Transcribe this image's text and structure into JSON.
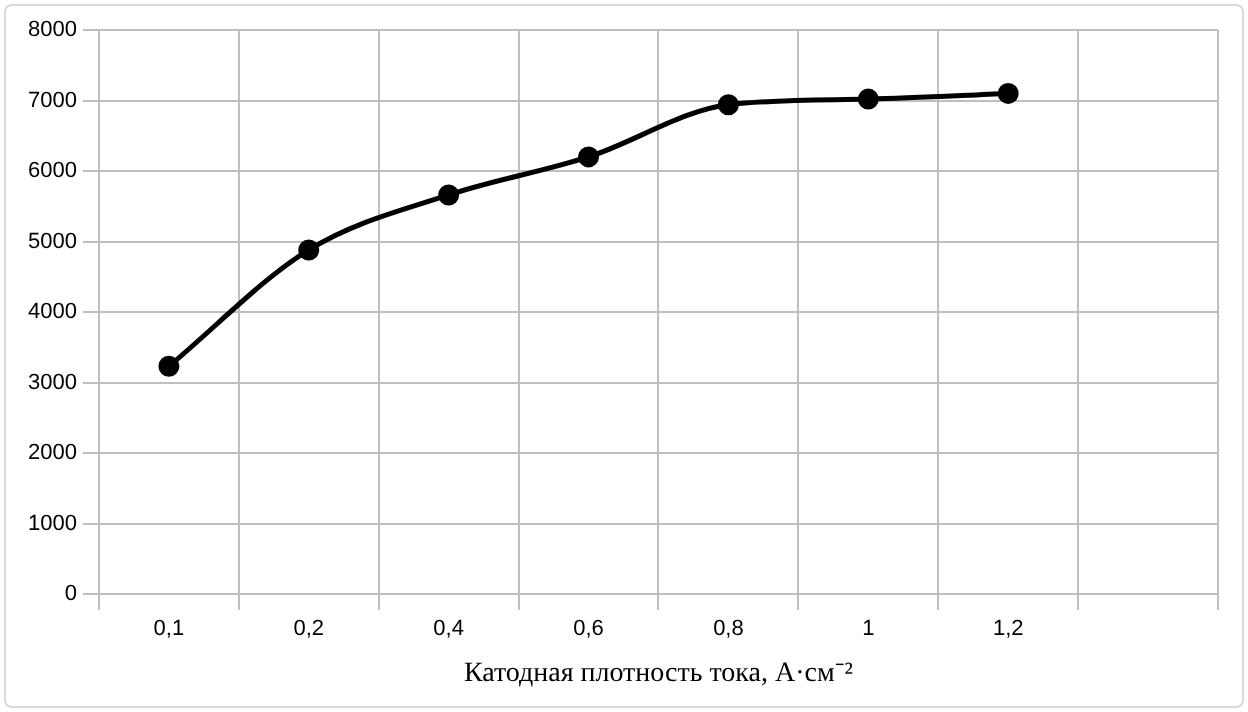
{
  "chart_data": {
    "type": "line",
    "xlabel": "Катодная плотность тока, А·см⁻²",
    "categories": [
      "0,1",
      "0,2",
      "0,4",
      "0,6",
      "0,8",
      "1",
      "1,2",
      null
    ],
    "series": [
      {
        "color": "#000000",
        "values": [
          3230,
          4880,
          5660,
          6200,
          6940,
          7020,
          7100,
          null
        ]
      }
    ],
    "ylim": [
      0,
      8000
    ],
    "yticks": [
      0,
      1000,
      2000,
      3000,
      4000,
      5000,
      6000,
      7000,
      8000
    ],
    "grid": true,
    "legend": false,
    "marker": "circle",
    "line_style": "solid"
  }
}
